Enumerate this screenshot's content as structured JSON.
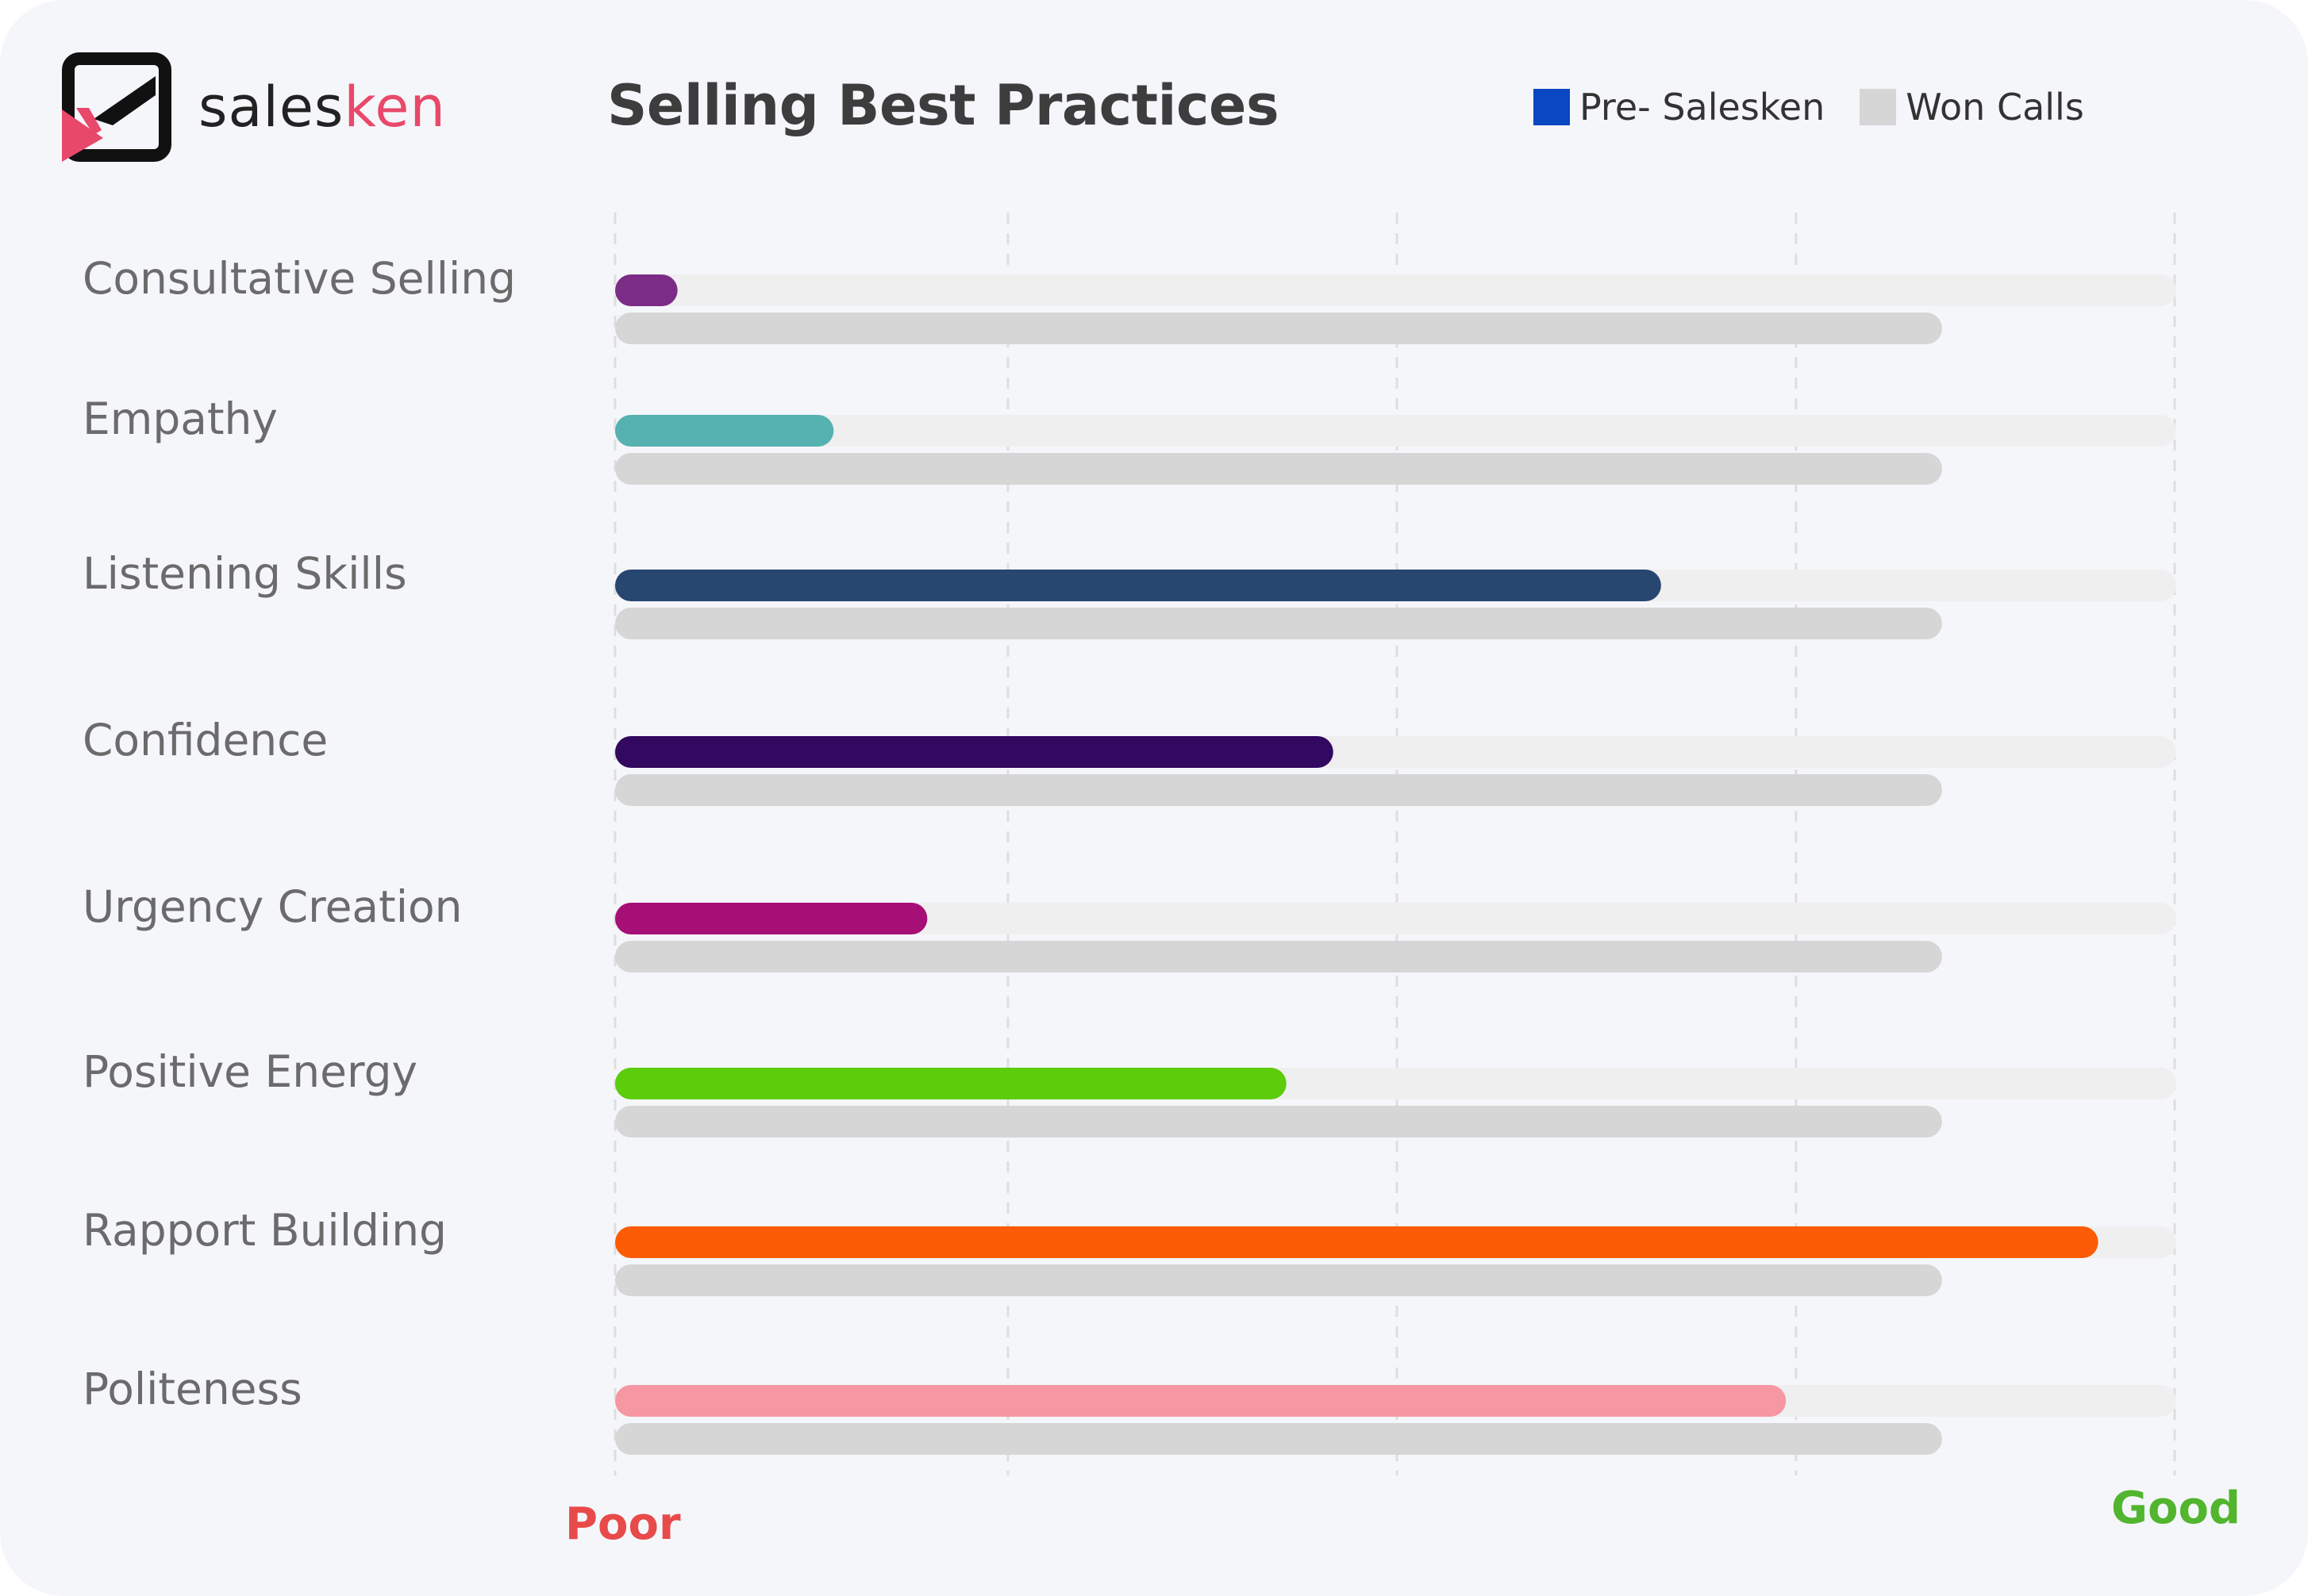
{
  "brand": {
    "name_part1": "sales",
    "name_part2": "ken",
    "accent_color": "#e8496a",
    "icon_color": "#111111"
  },
  "chart_data": {
    "type": "bar",
    "orientation": "horizontal",
    "title": "Selling Best Practices",
    "legend": [
      {
        "name": "Pre- Salesken",
        "color": "#0a47c2"
      },
      {
        "name": "Won Calls",
        "color": "#d6d6d6"
      }
    ],
    "legend_position": "top-right",
    "xlim": [
      0,
      100
    ],
    "x_start_label": "Poor",
    "x_end_label": "Good",
    "x_start_color": "#e84a4a",
    "x_end_color": "#52b52e",
    "grid": true,
    "track_color": "#efefef",
    "categories": [
      "Consultative Selling",
      "Empathy",
      "Listening Skills",
      "Confidence",
      "Urgency Creation",
      "Positive Energy",
      "Rapport Building",
      "Politeness"
    ],
    "series": [
      {
        "name": "Pre- Salesken",
        "values": [
          4,
          14,
          67,
          46,
          20,
          43,
          95,
          75
        ],
        "bar_colors": [
          "#7b2d86",
          "#56b1b1",
          "#274670",
          "#320860",
          "#a60f76",
          "#5dcc0a",
          "#fb5c05",
          "#f697a3"
        ]
      },
      {
        "name": "Won Calls",
        "values": [
          85,
          85,
          85,
          85,
          85,
          85,
          85,
          85
        ]
      }
    ]
  }
}
